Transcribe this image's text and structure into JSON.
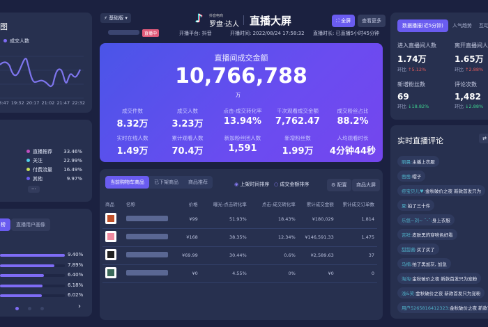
{
  "header": {
    "version": "基础版",
    "logo_small": "抖音电商",
    "logo": "罗盘·达人",
    "title": "直播大屏",
    "fullscreen": "全屏",
    "more": "查看更多",
    "live_badge": "直播中",
    "platform": "开播平台: 抖音",
    "start_time": "开播时间: 2022/08/24 17:58:32",
    "duration": "直播时长: 已直播5小时45分钟"
  },
  "main": {
    "title": "直播间成交金额",
    "total": "10,766,788",
    "unit": "万",
    "metrics": [
      {
        "label": "成交件数",
        "value": "8.32万"
      },
      {
        "label": "成交人数",
        "value": "3.23万"
      },
      {
        "label": "点击-成交转化率",
        "value": "13.94%"
      },
      {
        "label": "千次观看成交金额",
        "value": "7,762.47"
      },
      {
        "label": "成交粉丝占比",
        "value": "88.2%"
      },
      {
        "label": "实时在线人数",
        "value": "1.49万"
      },
      {
        "label": "累计观看人数",
        "value": "70.4万"
      },
      {
        "label": "新加粉丝团人数",
        "value": "1,591"
      },
      {
        "label": "新增粉丝数",
        "value": "1.99万"
      },
      {
        "label": "人均观看时长",
        "value": "4分钟44秒"
      }
    ]
  },
  "products": {
    "tabs": [
      "当前购物车商品",
      "已下架商品",
      "商品推荐"
    ],
    "sort": [
      "上架时间排序",
      "成交金额排序"
    ],
    "config": "配置",
    "screen": "商品大屏",
    "columns": [
      "商品",
      "名称",
      "价格",
      "曝光-点击转化率",
      "点击-成交转化率",
      "累计成交金额",
      "累计成交订单数"
    ],
    "rows": [
      {
        "price": "¥99",
        "ctr": "51.93%",
        "cvr": "18.43%",
        "gmv": "¥180,029",
        "orders": "1,814",
        "color": "#c0502a"
      },
      {
        "price": "¥168",
        "ctr": "38.35%",
        "cvr": "12.34%",
        "gmv": "¥146,591.33",
        "orders": "1,475",
        "color": "#f08aa0"
      },
      {
        "price": "¥69.99",
        "ctr": "30.44%",
        "cvr": "0.6%",
        "gmv": "¥2,589.63",
        "orders": "37",
        "color": "#222222"
      },
      {
        "price": "¥0",
        "ctr": "4.55%",
        "cvr": "0%",
        "gmv": "¥0",
        "orders": "0",
        "color": "#3c6a5a"
      }
    ]
  },
  "right": {
    "tabs": [
      "数据播报(近5分钟)",
      "人气趋势",
      "互动"
    ],
    "stats": [
      {
        "label": "进入直播间人数",
        "value": "1.74万",
        "cmp": "环比",
        "delta": "↑5.12%",
        "dir": "up"
      },
      {
        "label": "离开直播间人数",
        "value": "1.65万",
        "cmp": "环比",
        "delta": "↑2.88%",
        "dir": "up"
      },
      {
        "label": "新增粉丝数",
        "value": "69",
        "cmp": "环比",
        "delta": "↓18.82%",
        "dir": "down"
      },
      {
        "label": "评论次数",
        "value": "1,482",
        "cmp": "环比",
        "delta": "↓2.88%",
        "dir": "down"
      }
    ],
    "comments_title": "实时直播评论",
    "comments": [
      {
        "user": "丽晨:",
        "text": "主播上衣服"
      },
      {
        "user": "凿凿:",
        "text": "帽子"
      },
      {
        "user": "痘宝贝儿♥:",
        "text": "金秋破价之夜 新款首发只为"
      },
      {
        "user": "夏:",
        "text": "拍了三十件"
      },
      {
        "user": "乐悠~刘~ ˘ᵕ˘:",
        "text": "身上衣服"
      },
      {
        "user": "吉祥:",
        "text": "皮肤黑的穿啥色好看"
      },
      {
        "user": "甜甜酱:",
        "text": "买了买了"
      },
      {
        "user": "马楠:",
        "text": "拍了黑加灰, 加急"
      },
      {
        "user": "淘淘:",
        "text": "金秋破价之夜 新款首发只为宠粉"
      },
      {
        "user": "浅&笑:",
        "text": "金秋破价之夜 新款首发只为宠粉"
      },
      {
        "user": "用户5265816412323:",
        "text": "金秋破价之夜 新款首发只为宠粉"
      }
    ]
  },
  "left": {
    "chart_title_tail": "图",
    "legend": "成交人数",
    "xticks": [
      "18:47",
      "19:32",
      "20:17",
      "21:02",
      "21:47",
      "22:32"
    ],
    "sources": [
      {
        "name": "直播推荐",
        "pct": "33.46%",
        "color": "#c04fc0"
      },
      {
        "name": "关注",
        "pct": "22.99%",
        "color": "#4fd0e8"
      },
      {
        "name": "付费流量",
        "pct": "16.49%",
        "color": "#c8e05a"
      },
      {
        "name": "其他",
        "pct": "9.97%",
        "color": "#6a5cf0"
      }
    ],
    "more": "···",
    "tabs": [
      "榜",
      "直播用户画像"
    ],
    "bars": [
      {
        "pct": "9.40%",
        "v": 9.4
      },
      {
        "pct": "7.89%",
        "v": 7.89
      },
      {
        "pct": "6.40%",
        "v": 6.4
      },
      {
        "pct": "6.18%",
        "v": 6.18
      },
      {
        "pct": "6.02%",
        "v": 6.02
      }
    ],
    "next": "›"
  }
}
